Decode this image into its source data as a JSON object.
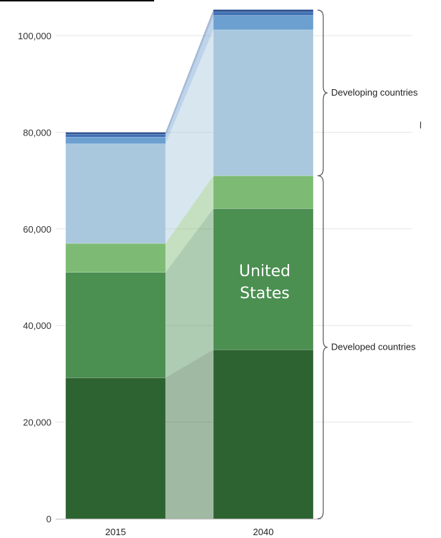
{
  "chart_data": {
    "type": "bar",
    "stacked": true,
    "categories": [
      "2015",
      "2040"
    ],
    "ylim": [
      0,
      105000
    ],
    "yticks": [
      0,
      20000,
      40000,
      60000,
      80000,
      100000
    ],
    "ytick_labels": [
      "0",
      "20,000",
      "40,000",
      "60,000",
      "80,000",
      "100,000"
    ],
    "grid": true,
    "series": [
      {
        "values": [
          29200,
          35000
        ],
        "color": "#2d6330"
      },
      {
        "values": [
          21800,
          29200
        ],
        "color": "#4b8f51"
      },
      {
        "values": [
          6000,
          6800
        ],
        "color": "#7dba74"
      },
      {
        "values": [
          20600,
          30200
        ],
        "color": "#a9c8de"
      },
      {
        "values": [
          1400,
          3000
        ],
        "color": "#6ca0d0"
      },
      {
        "values": [
          600,
          700
        ],
        "color": "#3f6fb4"
      },
      {
        "values": [
          400,
          500
        ],
        "color": "#2b4f8e"
      }
    ],
    "groups": [
      {
        "label": "Developed countries",
        "from": 0,
        "to": 71000
      },
      {
        "label": "Developing countries",
        "from": 71000,
        "to": 105300
      }
    ],
    "annotations": [
      {
        "text_lines": [
          "United",
          "States"
        ],
        "category": "2040",
        "series_index": 1
      }
    ],
    "stray_mark": "l"
  }
}
